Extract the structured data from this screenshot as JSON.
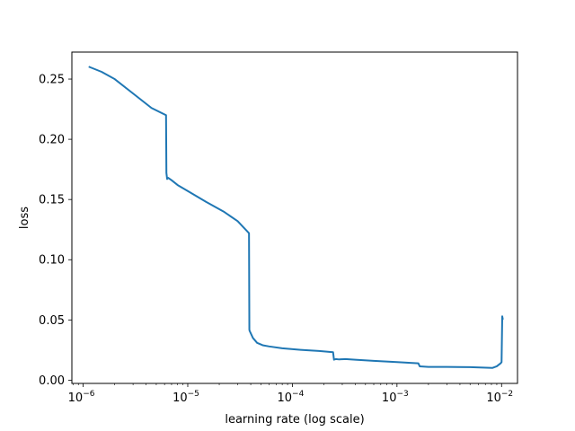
{
  "chart_data": {
    "type": "line",
    "xlabel": "learning rate (log scale)",
    "ylabel": "loss",
    "xscale": "log",
    "xlim": [
      7.8e-07,
      0.0142
    ],
    "ylim": [
      -0.0027,
      0.2724
    ],
    "grid": false,
    "line_color": "#1f77b4",
    "x_ticks": [
      {
        "value": 1e-06,
        "mantissa": "10",
        "exponent": "−6"
      },
      {
        "value": 1e-05,
        "mantissa": "10",
        "exponent": "−5"
      },
      {
        "value": 0.0001,
        "mantissa": "10",
        "exponent": "−4"
      },
      {
        "value": 0.001,
        "mantissa": "10",
        "exponent": "−3"
      },
      {
        "value": 0.01,
        "mantissa": "10",
        "exponent": "−2"
      }
    ],
    "y_ticks": [
      {
        "value": 0.0,
        "label": "0.00"
      },
      {
        "value": 0.05,
        "label": "0.05"
      },
      {
        "value": 0.1,
        "label": "0.10"
      },
      {
        "value": 0.15,
        "label": "0.15"
      },
      {
        "value": 0.2,
        "label": "0.20"
      },
      {
        "value": 0.25,
        "label": "0.25"
      }
    ],
    "series": [
      {
        "x": [
          1.15e-06,
          1.5e-06,
          2e-06,
          3e-06,
          4.5e-06,
          6.2e-06,
          6.25e-06,
          6.35e-06,
          6.5e-06,
          7e-06,
          8e-06,
          1e-05,
          1.5e-05,
          2.2e-05,
          3e-05,
          3.85e-05,
          3.88e-05,
          3.9e-05,
          4.2e-05,
          4.6e-05,
          5.2e-05,
          6e-05,
          8e-05,
          0.00012,
          0.00018,
          0.000245,
          0.00025,
          0.00026,
          0.00028,
          0.00032,
          0.0004,
          0.0006,
          0.001,
          0.0016,
          0.00165,
          0.002,
          0.003,
          0.005,
          0.0082,
          0.009,
          0.0098,
          0.01,
          0.01015,
          0.01025
        ],
        "y": [
          0.26,
          0.256,
          0.25,
          0.238,
          0.226,
          0.22,
          0.172,
          0.167,
          0.168,
          0.166,
          0.162,
          0.157,
          0.148,
          0.14,
          0.132,
          0.122,
          0.042,
          0.041,
          0.035,
          0.031,
          0.029,
          0.028,
          0.0265,
          0.0252,
          0.0242,
          0.0232,
          0.017,
          0.0175,
          0.0172,
          0.0175,
          0.017,
          0.016,
          0.015,
          0.014,
          0.0115,
          0.011,
          0.011,
          0.0108,
          0.0102,
          0.0115,
          0.014,
          0.015,
          0.053,
          0.051
        ]
      }
    ]
  }
}
